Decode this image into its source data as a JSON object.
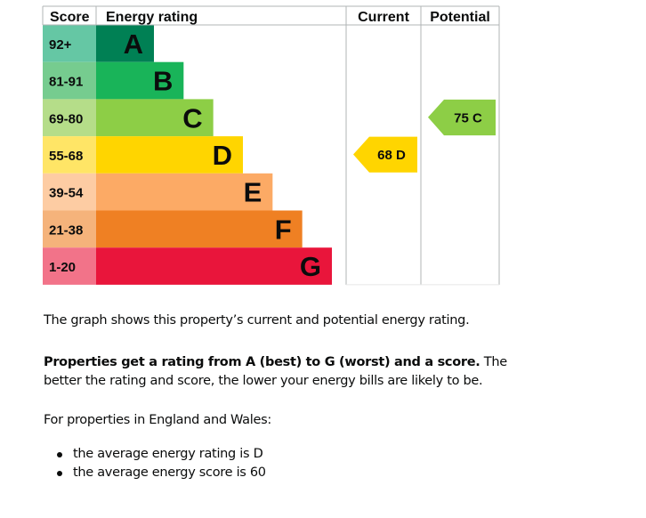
{
  "chart_data": {
    "type": "bar",
    "headers": {
      "score": "Score",
      "rating": "Energy rating",
      "current": "Current",
      "potential": "Potential"
    },
    "bands": [
      {
        "letter": "A",
        "range": "92+",
        "color": "#008054",
        "score_color": "#65c7a4"
      },
      {
        "letter": "B",
        "range": "81-91",
        "color": "#19b459",
        "score_color": "#76cc8f"
      },
      {
        "letter": "C",
        "range": "69-80",
        "color": "#8dce46",
        "score_color": "#b5dd89"
      },
      {
        "letter": "D",
        "range": "55-68",
        "color": "#ffd500",
        "score_color": "#ffe566"
      },
      {
        "letter": "E",
        "range": "39-54",
        "color": "#fcaa65",
        "score_color": "#fdcca3"
      },
      {
        "letter": "F",
        "range": "21-38",
        "color": "#ef8023",
        "score_color": "#f5b37b"
      },
      {
        "letter": "G",
        "range": "1-20",
        "color": "#e9153b",
        "score_color": "#f27389"
      }
    ],
    "current": {
      "score": 68,
      "band": "D",
      "label": "68 D",
      "color": "#ffd500"
    },
    "potential": {
      "score": 75,
      "band": "C",
      "label": "75 C",
      "color": "#8dce46"
    }
  },
  "text": {
    "intro": "The graph shows this property’s current and potential energy rating.",
    "rating_bold": "Properties get a rating from A (best) to G (worst) and a score.",
    "rating_rest": " The better the rating and score, the lower your energy bills are likely to be.",
    "region": "For properties in England and Wales:",
    "averages": [
      "the average energy rating is D",
      "the average energy score is 60"
    ]
  }
}
